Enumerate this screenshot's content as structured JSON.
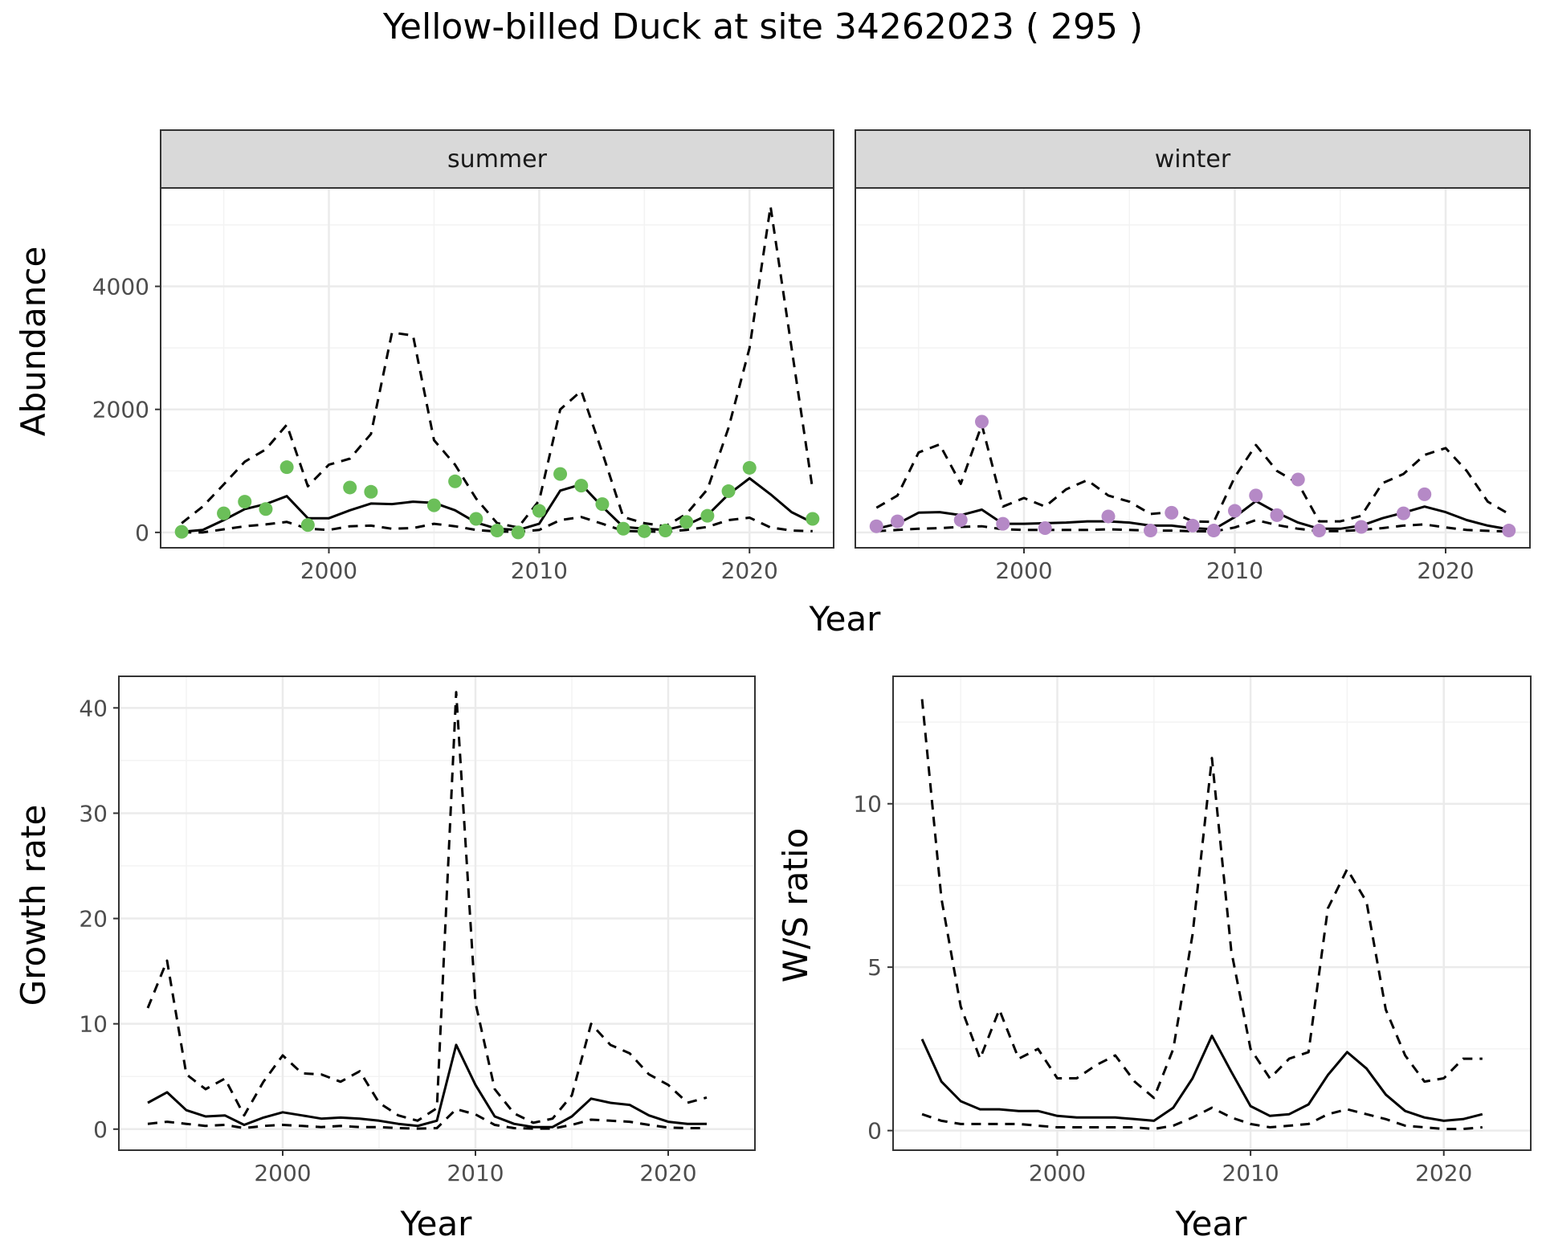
{
  "title": "Yellow-billed Duck at site 34262023 ( 295 )",
  "top_xlabel": "Year",
  "colors": {
    "summer_points": "#6bbf59",
    "winter_points": "#b589c6",
    "line": "#000000",
    "grid_major": "#ebebeb",
    "grid_minor": "#f3f3f3",
    "strip_fill": "#d9d9d9"
  },
  "chart_data": [
    {
      "type": "line",
      "panel": "summer",
      "strip_label": "summer",
      "xlabel": "Year",
      "ylabel": "Abundance",
      "xlim": [
        1992,
        2024
      ],
      "ylim": [
        -250,
        5600
      ],
      "x_ticks": [
        2000,
        2010,
        2020
      ],
      "y_ticks": [
        0,
        2000,
        4000
      ],
      "grid": true,
      "series": [
        {
          "role": "mean",
          "style": "solid",
          "x": [
            1993,
            1994,
            1995,
            1996,
            1997,
            1998,
            1999,
            2000,
            2001,
            2002,
            2003,
            2004,
            2005,
            2006,
            2007,
            2008,
            2009,
            2010,
            2011,
            2012,
            2013,
            2014,
            2015,
            2016,
            2017,
            2018,
            2019,
            2020,
            2021,
            2022,
            2023
          ],
          "y": [
            10,
            40,
            200,
            380,
            460,
            590,
            230,
            230,
            360,
            470,
            460,
            500,
            480,
            360,
            160,
            60,
            40,
            140,
            680,
            780,
            420,
            90,
            60,
            40,
            120,
            280,
            620,
            880,
            620,
            330,
            160
          ]
        },
        {
          "role": "upper",
          "style": "dashed",
          "x": [
            1993,
            1994,
            1995,
            1996,
            1997,
            1998,
            1999,
            2000,
            2001,
            2002,
            2003,
            2004,
            2005,
            2006,
            2007,
            2008,
            2009,
            2010,
            2011,
            2012,
            2013,
            2014,
            2015,
            2016,
            2017,
            2018,
            2019,
            2020,
            2021,
            2022,
            2023
          ],
          "y": [
            150,
            420,
            780,
            1150,
            1350,
            1750,
            750,
            1100,
            1200,
            1600,
            3250,
            3200,
            1500,
            1100,
            550,
            150,
            80,
            520,
            2000,
            2300,
            1300,
            250,
            150,
            100,
            300,
            700,
            1700,
            3000,
            5300,
            3000,
            700
          ]
        },
        {
          "role": "lower",
          "style": "dashed",
          "x": [
            1993,
            1994,
            1995,
            1996,
            1997,
            1998,
            1999,
            2000,
            2001,
            2002,
            2003,
            2004,
            2005,
            2006,
            2007,
            2008,
            2009,
            2010,
            2011,
            2012,
            2013,
            2014,
            2015,
            2016,
            2017,
            2018,
            2019,
            2020,
            2021,
            2022,
            2023
          ],
          "y": [
            0,
            0,
            50,
            100,
            130,
            170,
            60,
            40,
            100,
            110,
            60,
            70,
            140,
            100,
            40,
            15,
            10,
            40,
            200,
            250,
            140,
            25,
            15,
            10,
            40,
            90,
            200,
            240,
            80,
            30,
            20
          ]
        }
      ],
      "points": {
        "x": [
          1993,
          1995,
          1996,
          1997,
          1998,
          1999,
          2001,
          2002,
          2005,
          2006,
          2007,
          2008,
          2009,
          2010,
          2011,
          2012,
          2013,
          2014,
          2015,
          2016,
          2017,
          2018,
          2019,
          2020,
          2023
        ],
        "y": [
          10,
          310,
          500,
          380,
          1060,
          120,
          730,
          660,
          440,
          830,
          220,
          30,
          0,
          350,
          950,
          760,
          460,
          60,
          20,
          30,
          170,
          270,
          670,
          1050,
          220
        ]
      }
    },
    {
      "type": "line",
      "panel": "winter",
      "strip_label": "winter",
      "xlabel": "Year",
      "ylabel": "Abundance",
      "xlim": [
        1992,
        2024
      ],
      "ylim": [
        -250,
        5600
      ],
      "x_ticks": [
        2000,
        2010,
        2020
      ],
      "y_ticks": [
        0,
        2000,
        4000
      ],
      "grid": true,
      "series": [
        {
          "role": "mean",
          "style": "solid",
          "x": [
            1993,
            1994,
            1995,
            1996,
            1997,
            1998,
            1999,
            2000,
            2001,
            2002,
            2003,
            2004,
            2005,
            2006,
            2007,
            2008,
            2009,
            2010,
            2011,
            2012,
            2013,
            2014,
            2015,
            2016,
            2017,
            2018,
            2019,
            2020,
            2021,
            2022,
            2023
          ],
          "y": [
            60,
            140,
            320,
            330,
            280,
            370,
            140,
            140,
            150,
            160,
            180,
            180,
            160,
            110,
            110,
            70,
            50,
            250,
            510,
            320,
            160,
            60,
            60,
            110,
            230,
            320,
            420,
            330,
            200,
            110,
            50
          ]
        },
        {
          "role": "upper",
          "style": "dashed",
          "x": [
            1993,
            1994,
            1995,
            1996,
            1997,
            1998,
            1999,
            2000,
            2001,
            2002,
            2003,
            2004,
            2005,
            2006,
            2007,
            2008,
            2009,
            2010,
            2011,
            2012,
            2013,
            2014,
            2015,
            2016,
            2017,
            2018,
            2019,
            2020,
            2021,
            2022,
            2023
          ],
          "y": [
            400,
            600,
            1300,
            1430,
            790,
            1750,
            420,
            560,
            420,
            700,
            850,
            600,
            500,
            300,
            330,
            180,
            170,
            900,
            1420,
            1000,
            800,
            180,
            180,
            270,
            800,
            950,
            1260,
            1370,
            1000,
            500,
            300
          ]
        },
        {
          "role": "lower",
          "style": "dashed",
          "x": [
            1993,
            1994,
            1995,
            1996,
            1997,
            1998,
            1999,
            2000,
            2001,
            2002,
            2003,
            2004,
            2005,
            2006,
            2007,
            2008,
            2009,
            2010,
            2011,
            2012,
            2013,
            2014,
            2015,
            2016,
            2017,
            2018,
            2019,
            2020,
            2021,
            2022,
            2023
          ],
          "y": [
            20,
            40,
            60,
            70,
            90,
            100,
            50,
            40,
            40,
            40,
            40,
            50,
            40,
            30,
            30,
            20,
            15,
            80,
            200,
            120,
            60,
            20,
            20,
            40,
            70,
            110,
            130,
            80,
            40,
            25,
            15
          ]
        }
      ],
      "points": {
        "x": [
          1993,
          1994,
          1997,
          1998,
          1999,
          2001,
          2004,
          2006,
          2007,
          2008,
          2009,
          2010,
          2011,
          2012,
          2013,
          2014,
          2016,
          2018,
          2019,
          2023
        ],
        "y": [
          100,
          180,
          200,
          1800,
          140,
          70,
          260,
          30,
          320,
          110,
          30,
          350,
          600,
          280,
          860,
          30,
          90,
          310,
          620,
          30
        ]
      }
    },
    {
      "type": "line",
      "panel": "growth",
      "xlabel": "Year",
      "ylabel": "Growth rate",
      "xlim": [
        1991.5,
        2024.5
      ],
      "ylim": [
        -2,
        43
      ],
      "x_ticks": [
        2000,
        2010,
        2020
      ],
      "y_ticks": [
        0,
        10,
        20,
        30,
        40
      ],
      "grid": true,
      "series": [
        {
          "role": "mean",
          "style": "solid",
          "x": [
            1993,
            1994,
            1995,
            1996,
            1997,
            1998,
            1999,
            2000,
            2001,
            2002,
            2003,
            2004,
            2005,
            2006,
            2007,
            2008,
            2009,
            2010,
            2011,
            2012,
            2013,
            2014,
            2015,
            2016,
            2017,
            2018,
            2019,
            2020,
            2021,
            2022
          ],
          "y": [
            2.5,
            3.5,
            1.8,
            1.2,
            1.3,
            0.4,
            1.1,
            1.6,
            1.3,
            1.0,
            1.1,
            1.0,
            0.8,
            0.5,
            0.3,
            0.8,
            8.0,
            4.2,
            1.2,
            0.5,
            0.2,
            0.2,
            1.2,
            2.9,
            2.5,
            2.3,
            1.3,
            0.7,
            0.5,
            0.5
          ]
        },
        {
          "role": "upper",
          "style": "dashed",
          "x": [
            1993,
            1994,
            1995,
            1996,
            1997,
            1998,
            1999,
            2000,
            2001,
            2002,
            2003,
            2004,
            2005,
            2006,
            2007,
            2008,
            2009,
            2010,
            2011,
            2012,
            2013,
            2014,
            2015,
            2016,
            2017,
            2018,
            2019,
            2020,
            2021,
            2022
          ],
          "y": [
            11.5,
            16,
            5.2,
            3.8,
            4.8,
            1.3,
            4.5,
            7.0,
            5.3,
            5.2,
            4.5,
            5.5,
            2.5,
            1.3,
            0.8,
            2.0,
            41.5,
            12.0,
            3.8,
            1.5,
            0.6,
            1.0,
            3.2,
            10.0,
            8.0,
            7.2,
            5.2,
            4.2,
            2.5,
            3.0
          ]
        },
        {
          "role": "lower",
          "style": "dashed",
          "x": [
            1993,
            1994,
            1995,
            1996,
            1997,
            1998,
            1999,
            2000,
            2001,
            2002,
            2003,
            2004,
            2005,
            2006,
            2007,
            2008,
            2009,
            2010,
            2011,
            2012,
            2013,
            2014,
            2015,
            2016,
            2017,
            2018,
            2019,
            2020,
            2021,
            2022
          ],
          "y": [
            0.5,
            0.7,
            0.5,
            0.3,
            0.4,
            0.1,
            0.3,
            0.4,
            0.3,
            0.2,
            0.3,
            0.2,
            0.2,
            0.1,
            0.05,
            0.1,
            1.9,
            1.4,
            0.4,
            0.1,
            0.05,
            0.05,
            0.4,
            0.9,
            0.8,
            0.7,
            0.4,
            0.15,
            0.1,
            0.1
          ]
        }
      ]
    },
    {
      "type": "line",
      "panel": "ws_ratio",
      "xlabel": "Year",
      "ylabel": "W/S ratio",
      "xlim": [
        1991.5,
        2024.5
      ],
      "ylim": [
        -0.6,
        13.9
      ],
      "x_ticks": [
        2000,
        2010,
        2020
      ],
      "y_ticks": [
        0,
        5,
        10
      ],
      "grid": true,
      "series": [
        {
          "role": "mean",
          "style": "solid",
          "x": [
            1993,
            1994,
            1995,
            1996,
            1997,
            1998,
            1999,
            2000,
            2001,
            2002,
            2003,
            2004,
            2005,
            2006,
            2007,
            2008,
            2009,
            2010,
            2011,
            2012,
            2013,
            2014,
            2015,
            2016,
            2017,
            2018,
            2019,
            2020,
            2021,
            2022
          ],
          "y": [
            2.8,
            1.5,
            0.9,
            0.65,
            0.65,
            0.6,
            0.6,
            0.45,
            0.4,
            0.4,
            0.4,
            0.35,
            0.3,
            0.7,
            1.6,
            2.9,
            1.8,
            0.75,
            0.45,
            0.5,
            0.8,
            1.7,
            2.4,
            1.9,
            1.1,
            0.6,
            0.4,
            0.3,
            0.35,
            0.5
          ]
        },
        {
          "role": "upper",
          "style": "dashed",
          "x": [
            1993,
            1994,
            1995,
            1996,
            1997,
            1998,
            1999,
            2000,
            2001,
            2002,
            2003,
            2004,
            2005,
            2006,
            2007,
            2008,
            2009,
            2010,
            2011,
            2012,
            2013,
            2014,
            2015,
            2016,
            2017,
            2018,
            2019,
            2020,
            2021,
            2022
          ],
          "y": [
            13.2,
            7.1,
            3.8,
            2.2,
            3.7,
            2.2,
            2.5,
            1.6,
            1.6,
            2.0,
            2.3,
            1.5,
            1.0,
            2.5,
            6.0,
            11.4,
            5.5,
            2.5,
            1.6,
            2.2,
            2.4,
            6.8,
            8.0,
            7.0,
            3.7,
            2.3,
            1.5,
            1.6,
            2.2,
            2.2
          ]
        },
        {
          "role": "lower",
          "style": "dashed",
          "x": [
            1993,
            1994,
            1995,
            1996,
            1997,
            1998,
            1999,
            2000,
            2001,
            2002,
            2003,
            2004,
            2005,
            2006,
            2007,
            2008,
            2009,
            2010,
            2011,
            2012,
            2013,
            2014,
            2015,
            2016,
            2017,
            2018,
            2019,
            2020,
            2021,
            2022
          ],
          "y": [
            0.5,
            0.3,
            0.2,
            0.2,
            0.2,
            0.2,
            0.15,
            0.1,
            0.1,
            0.1,
            0.1,
            0.1,
            0.05,
            0.15,
            0.4,
            0.7,
            0.4,
            0.2,
            0.1,
            0.15,
            0.2,
            0.5,
            0.65,
            0.5,
            0.35,
            0.15,
            0.1,
            0.05,
            0.05,
            0.1
          ]
        }
      ]
    }
  ]
}
